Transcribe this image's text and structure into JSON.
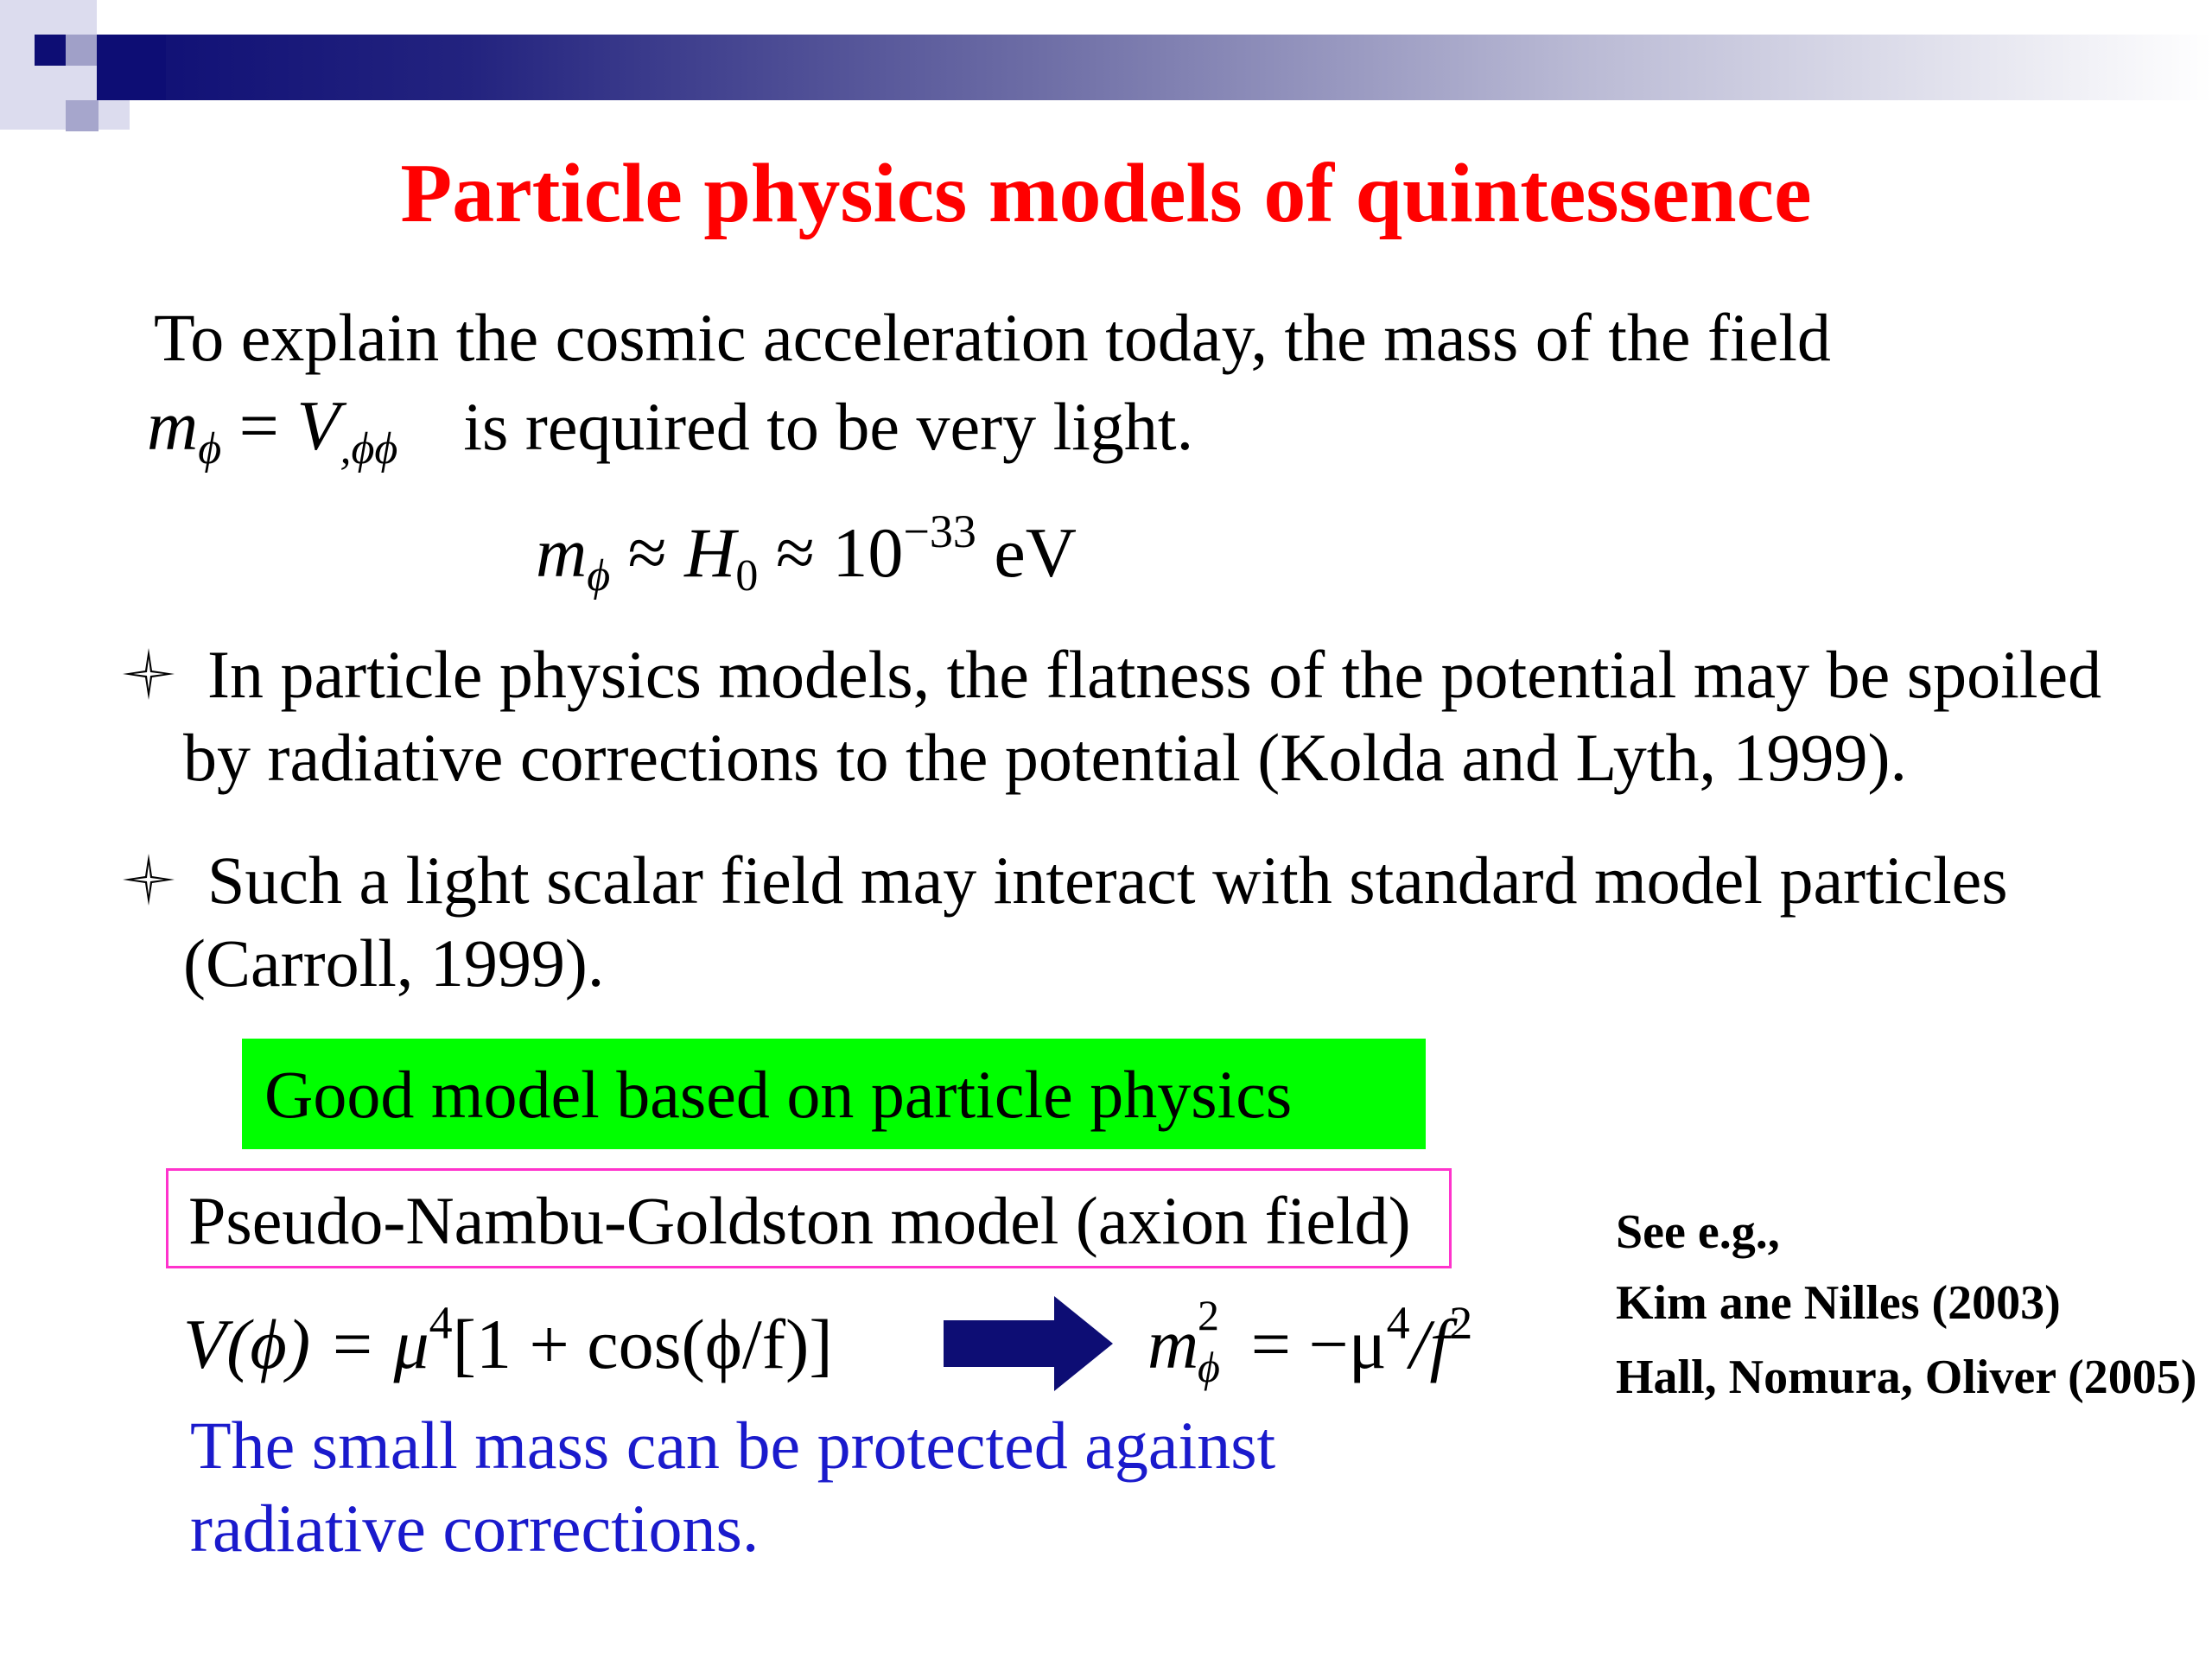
{
  "colors": {
    "title": "#ff0000",
    "header_bar": "#0d0d74",
    "good_box": "#00ff00",
    "pseudo_box_border": "#ff33cc",
    "arrow": "#0d0d74",
    "blue_text": "#1a1acc"
  },
  "title": "Particle physics models of quintessence",
  "intro": {
    "line1": "To explain the cosmic acceleration today, the mass of the field",
    "mass_def": {
      "m": "m",
      "sub": "ϕ",
      "eq": " = ",
      "V": "V",
      "V_sub": ",ϕϕ"
    },
    "line2_rest": "is required to be very light.",
    "estimate": {
      "m": "m",
      "m_sub": "ϕ",
      "approx1": " ≈ ",
      "H": "H",
      "H_sub": "0",
      "approx2": " ≈ ",
      "base": "10",
      "exp": "−33",
      "unit": "eV"
    }
  },
  "bullets": [
    {
      "icon": "four-point-star-icon",
      "line1": "In particle physics models, the flatness of the potential may be spoiled",
      "line2": "by radiative corrections to the potential (Kolda and Lyth, 1999)."
    },
    {
      "icon": "four-point-star-icon",
      "line1": "Such a light scalar field may interact with standard model particles",
      "line2": "(Carroll, 1999)."
    }
  ],
  "good_model_label": "Good model based on particle physics",
  "pseudo_model_label": "Pseudo-Nambu-Goldston model (axion field)",
  "potential": {
    "lhs": "V(ϕ) = μ",
    "lhs_exp": "4",
    "rhs": "[1 + cos(ϕ/f)]"
  },
  "mass_result": {
    "m": "m",
    "sup": "2",
    "sub": "ϕ",
    "eq": " = −μ",
    "mu_exp": "4",
    "div": "/f",
    "f_exp": "2"
  },
  "note": {
    "line1": "The small mass can be protected against",
    "line2": "radiative corrections."
  },
  "references": {
    "heading": "See e.g.,",
    "items": [
      "Kim ane Nilles (2003)",
      "Hall, Nomura, Oliver (2005)"
    ]
  }
}
